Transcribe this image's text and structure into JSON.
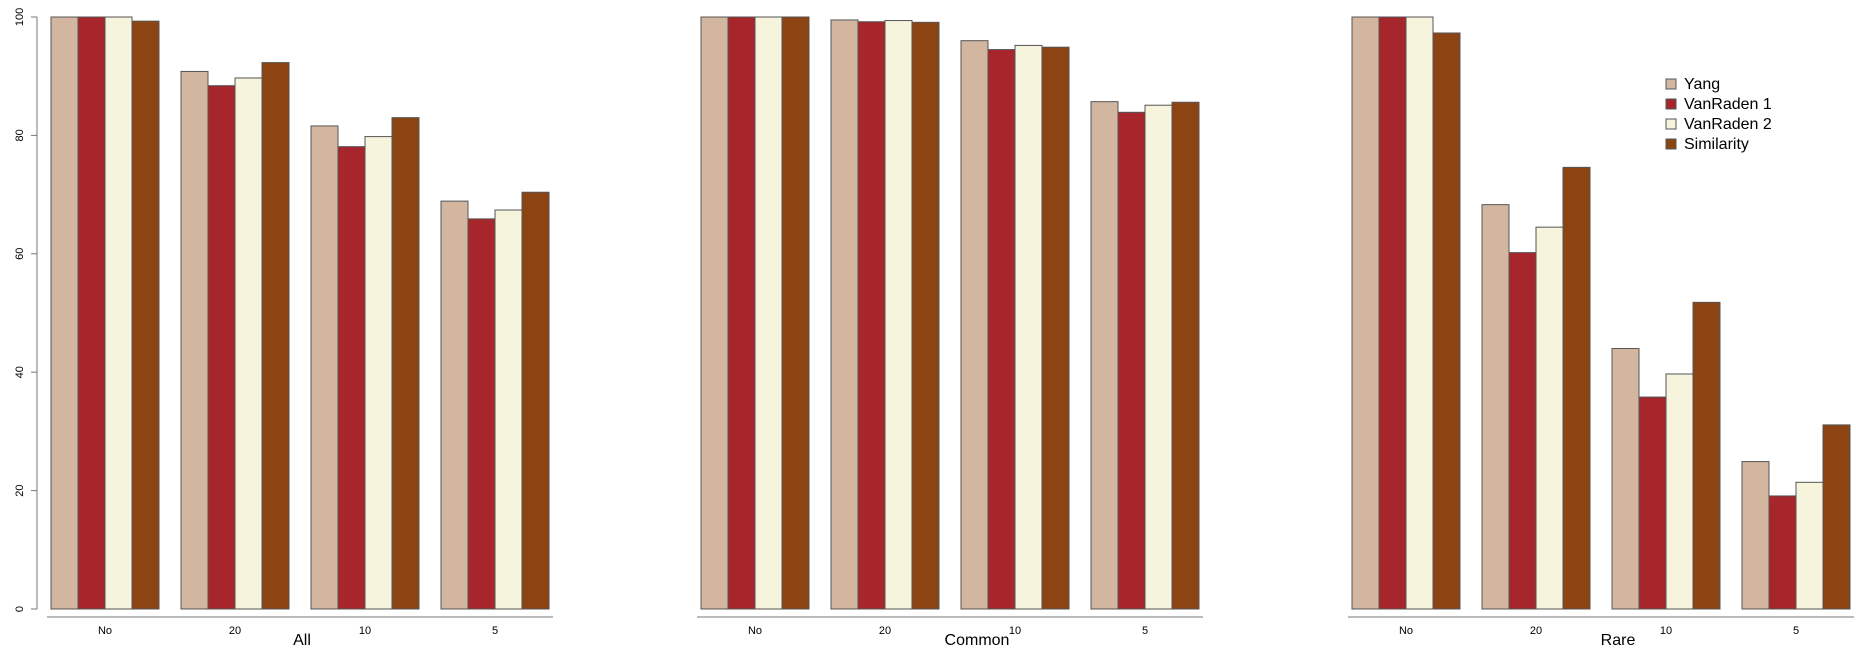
{
  "chart_data": [
    {
      "type": "bar",
      "title": "All",
      "xlabel": "All",
      "ylabel": "",
      "categories": [
        "No",
        "20",
        "10",
        "5"
      ],
      "ylim": [
        0,
        100
      ],
      "yticks": [
        "0",
        "20",
        "40",
        "60",
        "80",
        "100"
      ],
      "series": [
        {
          "name": "Yang",
          "values": [
            100,
            90.8,
            81.6,
            68.9
          ]
        },
        {
          "name": "VanRaden 1",
          "values": [
            100,
            88.4,
            78.1,
            65.9
          ]
        },
        {
          "name": "VanRaden 2",
          "values": [
            100,
            89.7,
            79.8,
            67.4
          ]
        },
        {
          "name": "Similarity",
          "values": [
            99.3,
            92.3,
            83,
            70.4
          ]
        }
      ]
    },
    {
      "type": "bar",
      "title": "Common",
      "xlabel": "Common",
      "ylabel": "",
      "categories": [
        "No",
        "20",
        "10",
        "5"
      ],
      "ylim": [
        0,
        100
      ],
      "series": [
        {
          "name": "Yang",
          "values": [
            100,
            99.5,
            96,
            85.7
          ]
        },
        {
          "name": "VanRaden 1",
          "values": [
            100,
            99.2,
            94.5,
            83.9
          ]
        },
        {
          "name": "VanRaden 2",
          "values": [
            100,
            99.4,
            95.2,
            85.1
          ]
        },
        {
          "name": "Similarity",
          "values": [
            100,
            99.1,
            94.9,
            85.6
          ]
        }
      ]
    },
    {
      "type": "bar",
      "title": "Rare",
      "xlabel": "Rare",
      "ylabel": "",
      "categories": [
        "No",
        "20",
        "10",
        "5"
      ],
      "ylim": [
        0,
        100
      ],
      "series": [
        {
          "name": "Yang",
          "values": [
            100,
            68.3,
            44,
            24.9
          ]
        },
        {
          "name": "VanRaden 1",
          "values": [
            100,
            60.2,
            35.8,
            19.1
          ]
        },
        {
          "name": "VanRaden 2",
          "values": [
            100,
            64.5,
            39.7,
            21.4
          ]
        },
        {
          "name": "Similarity",
          "values": [
            97.3,
            74.6,
            51.8,
            31.1
          ]
        }
      ]
    }
  ],
  "legend": {
    "placement": "top-right",
    "items": [
      {
        "label": "Yang",
        "color": "#d2b6a0"
      },
      {
        "label": "VanRaden 1",
        "color": "#a6262b"
      },
      {
        "label": "VanRaden 2",
        "color": "#f6f4dd"
      },
      {
        "label": "Similarity",
        "color": "#8b4412"
      }
    ]
  },
  "colors": {
    "Yang": "#d2b6a0",
    "VanRaden 1": "#a6262b",
    "VanRaden 2": "#f6f4dd",
    "Similarity": "#8b4412",
    "bar_border": "#555555",
    "axis": "#777777"
  }
}
